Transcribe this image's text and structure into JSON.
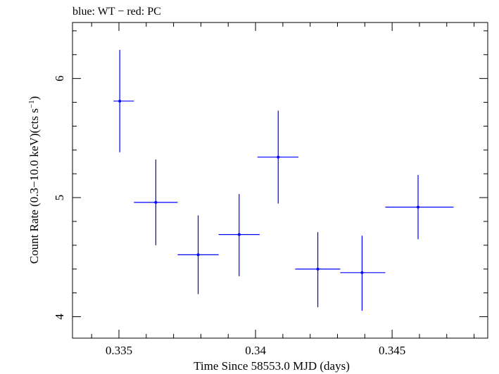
{
  "chart_data": {
    "type": "scatter",
    "title": "blue: WT − red: PC",
    "xlabel": "Time Since 58553.0 MJD (days)",
    "ylabel_main": "Count Rate (0.3−10.0 keV)(cts s",
    "ylabel_sup": "−1",
    "ylabel_end": ")",
    "xlim": [
      0.3333,
      0.3485
    ],
    "ylim": [
      3.82,
      6.47
    ],
    "xticks": [
      {
        "value": 0.335,
        "label": "0.335"
      },
      {
        "value": 0.34,
        "label": "0.34"
      },
      {
        "value": 0.345,
        "label": "0.345"
      }
    ],
    "yticks": [
      {
        "value": 4,
        "label": "4"
      },
      {
        "value": 5,
        "label": "5"
      },
      {
        "value": 6,
        "label": "6"
      }
    ],
    "grid": false,
    "series": [
      {
        "color": "#0000ff",
        "points": [
          {
            "x": 0.33503,
            "y": 5.81,
            "xerr": [
              0.3348,
              0.33555
            ],
            "yerr": [
              5.38,
              6.24
            ]
          },
          {
            "x": 0.33635,
            "y": 4.96,
            "xerr": [
              0.33555,
              0.33715
            ],
            "yerr": [
              4.6,
              5.32
            ]
          },
          {
            "x": 0.3379,
            "y": 4.52,
            "xerr": [
              0.33715,
              0.33865
            ],
            "yerr": [
              4.19,
              4.85
            ]
          },
          {
            "x": 0.3394,
            "y": 4.69,
            "xerr": [
              0.33865,
              0.34015
            ],
            "yerr": [
              4.34,
              5.03
            ]
          },
          {
            "x": 0.34083,
            "y": 5.34,
            "xerr": [
              0.34007,
              0.34157
            ],
            "yerr": [
              4.95,
              5.73
            ]
          },
          {
            "x": 0.34228,
            "y": 4.4,
            "xerr": [
              0.34145,
              0.3431
            ],
            "yerr": [
              4.08,
              4.71
            ]
          },
          {
            "x": 0.3439,
            "y": 4.37,
            "xerr": [
              0.3431,
              0.34475
            ],
            "yerr": [
              4.05,
              4.68
            ]
          },
          {
            "x": 0.34595,
            "y": 4.92,
            "xerr": [
              0.34475,
              0.34725
            ],
            "yerr": [
              4.65,
              5.19
            ]
          }
        ]
      }
    ]
  }
}
